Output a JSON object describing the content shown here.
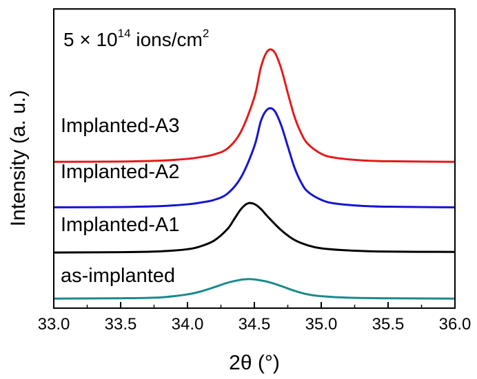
{
  "chart_data": {
    "type": "line",
    "xlabel": "2θ (°)",
    "ylabel": "Intensity (a. u.)",
    "xlim": [
      33.0,
      36.0
    ],
    "ylim": [
      0,
      1
    ],
    "y_ticks_shown": false,
    "grid": false,
    "legend": "none",
    "x_ticks": [
      33.0,
      33.5,
      34.0,
      34.5,
      35.0,
      35.5,
      36.0
    ],
    "x_tick_labels": [
      "33.0",
      "33.5",
      "34.0",
      "34.5",
      "35.0",
      "35.5",
      "36.0"
    ],
    "annotation": {
      "prefix": "5 × 10",
      "exponent": "14",
      "unit": " ions/cm",
      "unit_exponent": "2"
    },
    "series": [
      {
        "name": "as-implanted",
        "color": "#1a8a8a",
        "points": [
          [
            33.0,
            0.032
          ],
          [
            33.5,
            0.033
          ],
          [
            33.8,
            0.036
          ],
          [
            34.0,
            0.046
          ],
          [
            34.1,
            0.056
          ],
          [
            34.2,
            0.07
          ],
          [
            34.3,
            0.085
          ],
          [
            34.4,
            0.095
          ],
          [
            34.45,
            0.097
          ],
          [
            34.5,
            0.096
          ],
          [
            34.6,
            0.088
          ],
          [
            34.7,
            0.074
          ],
          [
            34.8,
            0.058
          ],
          [
            34.9,
            0.046
          ],
          [
            35.0,
            0.04
          ],
          [
            35.2,
            0.035
          ],
          [
            35.5,
            0.033
          ],
          [
            36.0,
            0.032
          ]
        ]
      },
      {
        "name": "Implanted-A1",
        "color": "#000000",
        "points": [
          [
            33.0,
            0.186
          ],
          [
            33.5,
            0.187
          ],
          [
            33.8,
            0.19
          ],
          [
            34.0,
            0.197
          ],
          [
            34.1,
            0.207
          ],
          [
            34.2,
            0.226
          ],
          [
            34.3,
            0.265
          ],
          [
            34.35,
            0.298
          ],
          [
            34.4,
            0.331
          ],
          [
            34.45,
            0.35
          ],
          [
            34.5,
            0.348
          ],
          [
            34.55,
            0.331
          ],
          [
            34.6,
            0.306
          ],
          [
            34.7,
            0.261
          ],
          [
            34.8,
            0.228
          ],
          [
            34.9,
            0.21
          ],
          [
            35.0,
            0.2
          ],
          [
            35.2,
            0.193
          ],
          [
            35.5,
            0.189
          ],
          [
            36.0,
            0.188
          ]
        ]
      },
      {
        "name": "Implanted-A2",
        "color": "#1414d2",
        "points": [
          [
            33.0,
            0.337
          ],
          [
            33.5,
            0.338
          ],
          [
            33.8,
            0.341
          ],
          [
            34.0,
            0.347
          ],
          [
            34.1,
            0.353
          ],
          [
            34.2,
            0.362
          ],
          [
            34.3,
            0.383
          ],
          [
            34.4,
            0.437
          ],
          [
            34.5,
            0.541
          ],
          [
            34.55,
            0.627
          ],
          [
            34.6,
            0.665
          ],
          [
            34.65,
            0.66
          ],
          [
            34.7,
            0.612
          ],
          [
            34.75,
            0.541
          ],
          [
            34.8,
            0.47
          ],
          [
            34.85,
            0.42
          ],
          [
            34.9,
            0.389
          ],
          [
            35.0,
            0.362
          ],
          [
            35.1,
            0.35
          ],
          [
            35.3,
            0.342
          ],
          [
            35.5,
            0.339
          ],
          [
            36.0,
            0.337
          ]
        ]
      },
      {
        "name": "Implanted-A3",
        "color": "#e41a1a",
        "points": [
          [
            33.0,
            0.489
          ],
          [
            33.5,
            0.49
          ],
          [
            33.8,
            0.493
          ],
          [
            34.0,
            0.499
          ],
          [
            34.1,
            0.505
          ],
          [
            34.2,
            0.514
          ],
          [
            34.3,
            0.534
          ],
          [
            34.4,
            0.59
          ],
          [
            34.5,
            0.705
          ],
          [
            34.55,
            0.807
          ],
          [
            34.6,
            0.86
          ],
          [
            34.65,
            0.856
          ],
          [
            34.7,
            0.802
          ],
          [
            34.75,
            0.719
          ],
          [
            34.8,
            0.64
          ],
          [
            34.85,
            0.585
          ],
          [
            34.9,
            0.549
          ],
          [
            35.0,
            0.516
          ],
          [
            35.1,
            0.503
          ],
          [
            35.3,
            0.494
          ],
          [
            35.5,
            0.491
          ],
          [
            36.0,
            0.489
          ]
        ]
      }
    ]
  }
}
